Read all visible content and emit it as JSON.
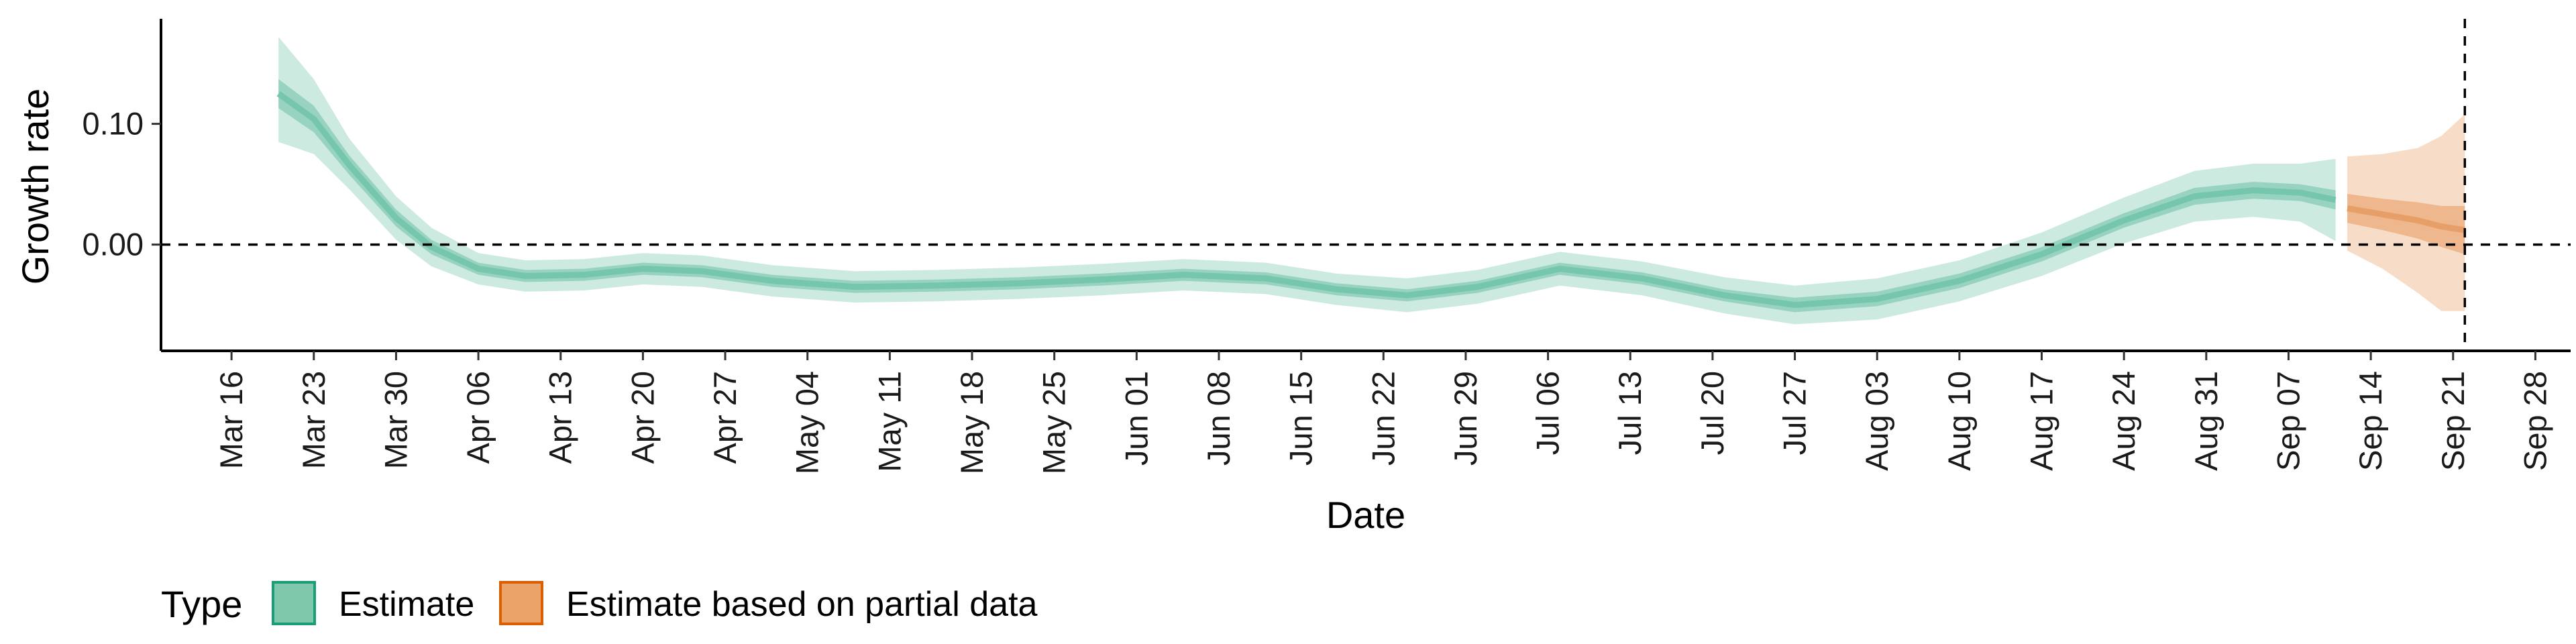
{
  "chart_data": {
    "type": "area",
    "xlabel": "Date",
    "ylabel": "Growth rate",
    "x_range": [
      "2020-03-10",
      "2020-10-01"
    ],
    "ylim": [
      -0.088,
      0.187
    ],
    "y_ticks": [
      {
        "value": 0.0,
        "label": "0.00"
      },
      {
        "value": 0.1,
        "label": "0.10"
      }
    ],
    "x_ticks": [
      {
        "date": "2020-03-16",
        "label": "Mar 16"
      },
      {
        "date": "2020-03-23",
        "label": "Mar 23"
      },
      {
        "date": "2020-03-30",
        "label": "Mar 30"
      },
      {
        "date": "2020-04-06",
        "label": "Apr 06"
      },
      {
        "date": "2020-04-13",
        "label": "Apr 13"
      },
      {
        "date": "2020-04-20",
        "label": "Apr 20"
      },
      {
        "date": "2020-04-27",
        "label": "Apr 27"
      },
      {
        "date": "2020-05-04",
        "label": "May 04"
      },
      {
        "date": "2020-05-11",
        "label": "May 11"
      },
      {
        "date": "2020-05-18",
        "label": "May 18"
      },
      {
        "date": "2020-05-25",
        "label": "May 25"
      },
      {
        "date": "2020-06-01",
        "label": "Jun 01"
      },
      {
        "date": "2020-06-08",
        "label": "Jun 08"
      },
      {
        "date": "2020-06-15",
        "label": "Jun 15"
      },
      {
        "date": "2020-06-22",
        "label": "Jun 22"
      },
      {
        "date": "2020-06-29",
        "label": "Jun 29"
      },
      {
        "date": "2020-07-06",
        "label": "Jul 06"
      },
      {
        "date": "2020-07-13",
        "label": "Jul 13"
      },
      {
        "date": "2020-07-20",
        "label": "Jul 20"
      },
      {
        "date": "2020-07-27",
        "label": "Jul 27"
      },
      {
        "date": "2020-08-03",
        "label": "Aug 03"
      },
      {
        "date": "2020-08-10",
        "label": "Aug 10"
      },
      {
        "date": "2020-08-17",
        "label": "Aug 17"
      },
      {
        "date": "2020-08-24",
        "label": "Aug 24"
      },
      {
        "date": "2020-08-31",
        "label": "Aug 31"
      },
      {
        "date": "2020-09-07",
        "label": "Sep 07"
      },
      {
        "date": "2020-09-14",
        "label": "Sep 14"
      },
      {
        "date": "2020-09-21",
        "label": "Sep 21"
      },
      {
        "date": "2020-09-28",
        "label": "Sep 28"
      }
    ],
    "reference_lines": [
      {
        "axis": "y",
        "value": 0.0,
        "style": "dashed"
      },
      {
        "axis": "x",
        "date": "2020-09-22",
        "style": "dashed"
      }
    ],
    "series": [
      {
        "name": "Estimate",
        "color": "#1b9e77",
        "points": [
          {
            "date": "2020-03-20",
            "median": 0.125,
            "lower_50": 0.113,
            "upper_50": 0.137,
            "lower_90": 0.085,
            "upper_90": 0.172
          },
          {
            "date": "2020-03-23",
            "median": 0.104,
            "lower_50": 0.093,
            "upper_50": 0.115,
            "lower_90": 0.075,
            "upper_90": 0.137
          },
          {
            "date": "2020-03-26",
            "median": 0.066,
            "lower_50": 0.058,
            "upper_50": 0.074,
            "lower_90": 0.046,
            "upper_90": 0.088
          },
          {
            "date": "2020-03-30",
            "median": 0.022,
            "lower_50": 0.015,
            "upper_50": 0.029,
            "lower_90": 0.004,
            "upper_90": 0.04
          },
          {
            "date": "2020-04-02",
            "median": -0.002,
            "lower_50": -0.008,
            "upper_50": 0.004,
            "lower_90": -0.018,
            "upper_90": 0.014
          },
          {
            "date": "2020-04-06",
            "median": -0.02,
            "lower_50": -0.025,
            "upper_50": -0.015,
            "lower_90": -0.033,
            "upper_90": -0.007
          },
          {
            "date": "2020-04-10",
            "median": -0.026,
            "lower_50": -0.031,
            "upper_50": -0.021,
            "lower_90": -0.039,
            "upper_90": -0.013
          },
          {
            "date": "2020-04-15",
            "median": -0.025,
            "lower_50": -0.03,
            "upper_50": -0.02,
            "lower_90": -0.038,
            "upper_90": -0.012
          },
          {
            "date": "2020-04-20",
            "median": -0.02,
            "lower_50": -0.025,
            "upper_50": -0.015,
            "lower_90": -0.033,
            "upper_90": -0.007
          },
          {
            "date": "2020-04-25",
            "median": -0.022,
            "lower_50": -0.027,
            "upper_50": -0.017,
            "lower_90": -0.035,
            "upper_90": -0.009
          },
          {
            "date": "2020-05-01",
            "median": -0.03,
            "lower_50": -0.035,
            "upper_50": -0.025,
            "lower_90": -0.043,
            "upper_90": -0.017
          },
          {
            "date": "2020-05-08",
            "median": -0.035,
            "lower_50": -0.04,
            "upper_50": -0.03,
            "lower_90": -0.048,
            "upper_90": -0.022
          },
          {
            "date": "2020-05-15",
            "median": -0.034,
            "lower_50": -0.039,
            "upper_50": -0.029,
            "lower_90": -0.047,
            "upper_90": -0.021
          },
          {
            "date": "2020-05-22",
            "median": -0.032,
            "lower_50": -0.037,
            "upper_50": -0.027,
            "lower_90": -0.045,
            "upper_90": -0.019
          },
          {
            "date": "2020-05-29",
            "median": -0.029,
            "lower_50": -0.034,
            "upper_50": -0.024,
            "lower_90": -0.042,
            "upper_90": -0.016
          },
          {
            "date": "2020-06-05",
            "median": -0.025,
            "lower_50": -0.03,
            "upper_50": -0.02,
            "lower_90": -0.038,
            "upper_90": -0.012
          },
          {
            "date": "2020-06-12",
            "median": -0.028,
            "lower_50": -0.033,
            "upper_50": -0.023,
            "lower_90": -0.041,
            "upper_90": -0.015
          },
          {
            "date": "2020-06-18",
            "median": -0.037,
            "lower_50": -0.042,
            "upper_50": -0.032,
            "lower_90": -0.05,
            "upper_90": -0.024
          },
          {
            "date": "2020-06-24",
            "median": -0.042,
            "lower_50": -0.047,
            "upper_50": -0.037,
            "lower_90": -0.056,
            "upper_90": -0.028
          },
          {
            "date": "2020-06-30",
            "median": -0.035,
            "lower_50": -0.04,
            "upper_50": -0.03,
            "lower_90": -0.049,
            "upper_90": -0.021
          },
          {
            "date": "2020-07-07",
            "median": -0.02,
            "lower_50": -0.025,
            "upper_50": -0.015,
            "lower_90": -0.034,
            "upper_90": -0.006
          },
          {
            "date": "2020-07-14",
            "median": -0.028,
            "lower_50": -0.033,
            "upper_50": -0.023,
            "lower_90": -0.042,
            "upper_90": -0.014
          },
          {
            "date": "2020-07-21",
            "median": -0.042,
            "lower_50": -0.047,
            "upper_50": -0.037,
            "lower_90": -0.057,
            "upper_90": -0.027
          },
          {
            "date": "2020-07-27",
            "median": -0.05,
            "lower_50": -0.056,
            "upper_50": -0.044,
            "lower_90": -0.066,
            "upper_90": -0.034
          },
          {
            "date": "2020-08-03",
            "median": -0.045,
            "lower_50": -0.051,
            "upper_50": -0.039,
            "lower_90": -0.062,
            "upper_90": -0.028
          },
          {
            "date": "2020-08-10",
            "median": -0.03,
            "lower_50": -0.036,
            "upper_50": -0.024,
            "lower_90": -0.047,
            "upper_90": -0.013
          },
          {
            "date": "2020-08-17",
            "median": -0.008,
            "lower_50": -0.014,
            "upper_50": -0.002,
            "lower_90": -0.026,
            "upper_90": 0.01
          },
          {
            "date": "2020-08-24",
            "median": 0.02,
            "lower_50": 0.014,
            "upper_50": 0.026,
            "lower_90": 0.001,
            "upper_90": 0.039
          },
          {
            "date": "2020-08-30",
            "median": 0.04,
            "lower_50": 0.033,
            "upper_50": 0.047,
            "lower_90": 0.019,
            "upper_90": 0.061
          },
          {
            "date": "2020-09-04",
            "median": 0.045,
            "lower_50": 0.038,
            "upper_50": 0.052,
            "lower_90": 0.023,
            "upper_90": 0.067
          },
          {
            "date": "2020-09-08",
            "median": 0.043,
            "lower_50": 0.036,
            "upper_50": 0.05,
            "lower_90": 0.019,
            "upper_90": 0.067
          },
          {
            "date": "2020-09-11",
            "median": 0.037,
            "lower_50": 0.029,
            "upper_50": 0.045,
            "lower_90": 0.003,
            "upper_90": 0.071
          }
        ]
      },
      {
        "name": "Estimate based on partial data",
        "color": "#d95f02",
        "points": [
          {
            "date": "2020-09-12",
            "median": 0.03,
            "lower_50": 0.018,
            "upper_50": 0.042,
            "lower_90": -0.005,
            "upper_90": 0.073
          },
          {
            "date": "2020-09-15",
            "median": 0.025,
            "lower_50": 0.012,
            "upper_50": 0.038,
            "lower_90": -0.02,
            "upper_90": 0.075
          },
          {
            "date": "2020-09-18",
            "median": 0.02,
            "lower_50": 0.005,
            "upper_50": 0.035,
            "lower_90": -0.04,
            "upper_90": 0.08
          },
          {
            "date": "2020-09-20",
            "median": 0.015,
            "lower_50": -0.002,
            "upper_50": 0.032,
            "lower_90": -0.055,
            "upper_90": 0.09
          },
          {
            "date": "2020-09-22",
            "median": 0.012,
            "lower_50": -0.008,
            "upper_50": 0.032,
            "lower_90": -0.055,
            "upper_90": 0.108
          }
        ]
      }
    ],
    "legend": {
      "title": "Type",
      "position": "bottom-left",
      "entries": [
        {
          "label": "Estimate",
          "fill": "#7fc8ab",
          "border": "#1b9e77"
        },
        {
          "label": "Estimate based on partial data",
          "fill": "#eba36a",
          "border": "#d95f02"
        }
      ]
    }
  }
}
